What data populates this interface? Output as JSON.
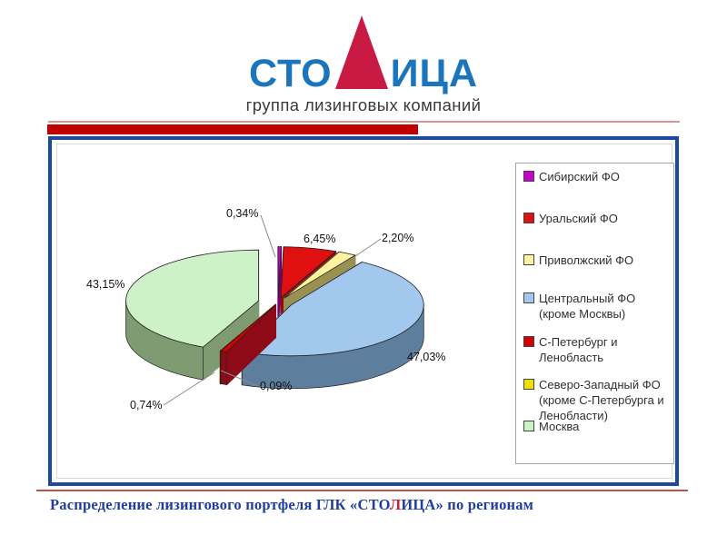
{
  "logo": {
    "word_left": "СТО",
    "word_middle": "Л",
    "word_right": "ИЦА",
    "tagline": "группа лизинговых компаний",
    "blue": "#1B75BC",
    "red": "#C81A42"
  },
  "accent": {
    "bar_color": "#C00000",
    "thin_line_color": "#D99694",
    "bottom_divider_color": "#C0504D",
    "panel_border_color": "#1C4A9C"
  },
  "chart_data": {
    "type": "pie",
    "style": "3d-exploded",
    "unit": "%",
    "legend_position": "right",
    "labels": [
      "Сибирский ФО",
      "Уральский ФО",
      "Приволжский ФО",
      "Центральный ФО (кроме Москвы)",
      "С-Петербург и Ленобласть",
      "Северо-Западный ФО (кроме С-Петербурга и Ленобласти)",
      "Москва"
    ],
    "values": [
      0.34,
      6.45,
      2.2,
      47.03,
      0.74,
      0.09,
      43.15
    ],
    "value_labels": [
      "0,34%",
      "6,45%",
      "2,20%",
      "47,03%",
      "0,74%",
      "0,09%",
      "43,15%"
    ],
    "colors": [
      "#CC00CC",
      "#E01010",
      "#FFF3A0",
      "#A3C8EE",
      "#D50000",
      "#EFE000",
      "#CDF2C8"
    ],
    "side_colors": [
      "#7A007A",
      "#8E0B0B",
      "#9A9050",
      "#5E7E9E",
      "#8E0A16",
      "#A09200",
      "#7E9B72"
    ]
  },
  "caption": {
    "part1": "Распределение лизингового портфеля ГЛК «СТО",
    "red_letter": "Л",
    "part2": "ИЦА» по регионам"
  }
}
